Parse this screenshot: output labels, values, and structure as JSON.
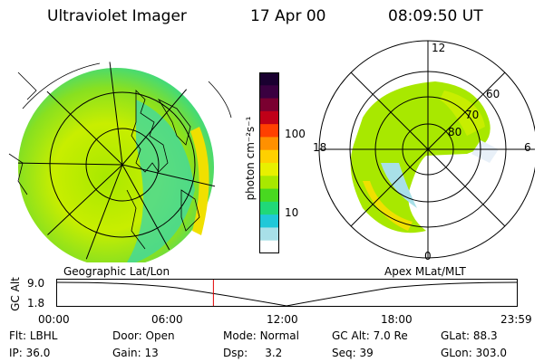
{
  "header": {
    "instrument": "Ultraviolet Imager",
    "date": "17 Apr 00",
    "time": "08:09:50 UT"
  },
  "colorbar": {
    "unit_label": "photon cm⁻²s⁻¹",
    "tick_high": "100",
    "tick_low": "10",
    "colors": [
      "#1a0030",
      "#3a0040",
      "#7a0030",
      "#c00018",
      "#ff4000",
      "#ff9000",
      "#ffd000",
      "#e8f000",
      "#a8e800",
      "#48d820",
      "#20d878",
      "#20c8d8",
      "#a8e0e8",
      "#ffffff"
    ]
  },
  "panels": {
    "left_label": "Geographic Lat/Lon",
    "right_label": "Apex MLat/MLT",
    "polar_ticks": {
      "top": "12",
      "left": "18",
      "right": "6",
      "bottom": "0",
      "lat60": "60",
      "lat70": "70",
      "lat80": "80"
    }
  },
  "altitude_plot": {
    "ylabel": "GC Alt",
    "ymax": "9.0",
    "ymin": "1.8",
    "ticks": [
      "00:00",
      "06:00",
      "12:00",
      "18:00",
      "23:59"
    ],
    "current_time_fraction": 0.34
  },
  "info": {
    "flt_label": "Flt:",
    "flt_value": "LBHL",
    "ip_label": "IP:",
    "ip_value": "36.0",
    "door_label": "Door:",
    "door_value": "Open",
    "gain_label": "Gain:",
    "gain_value": "13",
    "mode_label": "Mode:",
    "mode_value": "Normal",
    "dsp_label": "Dsp:",
    "dsp_value": "3.2",
    "gcalt_label": "GC Alt:",
    "gcalt_value": "7.0 Re",
    "seq_label": "Seq:",
    "seq_value": "39",
    "glat_label": "GLat:",
    "glat_value": "88.3",
    "glon_label": "GLon:",
    "glon_value": "303.0"
  }
}
